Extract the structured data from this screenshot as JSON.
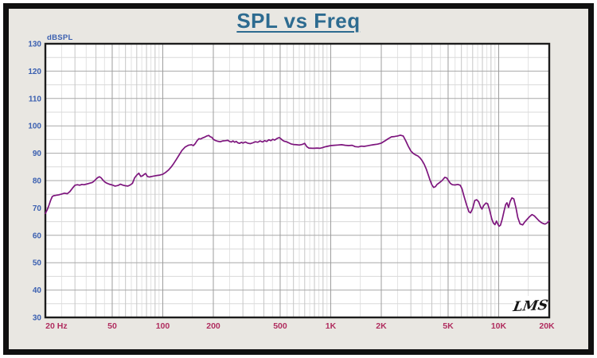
{
  "frame": {
    "outer_border_color": "#101010",
    "background": "#e9e7e2"
  },
  "chart_data": {
    "type": "line",
    "title": "SPL vs Freq",
    "title_color": "#2d6b90",
    "xlabel": "",
    "ylabel": "dBSPL",
    "watermark": "LMS",
    "x_axis": {
      "scale": "log",
      "min": 20,
      "max": 20000,
      "unit": "Hz",
      "unit_pos_hz": 25.2,
      "label_color": "#b02d5f",
      "ticks": [
        {
          "f": 20,
          "label": "20"
        },
        {
          "f": 50,
          "label": "50"
        },
        {
          "f": 100,
          "label": "100"
        },
        {
          "f": 200,
          "label": "200"
        },
        {
          "f": 500,
          "label": "500"
        },
        {
          "f": 1000,
          "label": "1K"
        },
        {
          "f": 2000,
          "label": "2K"
        },
        {
          "f": 5000,
          "label": "5K"
        },
        {
          "f": 10000,
          "label": "10K"
        },
        {
          "f": 20000,
          "label": "20K"
        }
      ]
    },
    "y_axis": {
      "min": 30,
      "max": 130,
      "major_step": 10,
      "minor_step": 5,
      "label_color": "#3a5fb0",
      "tick_labels": [
        "130",
        "120",
        "110",
        "100",
        "90",
        "80",
        "70",
        "60",
        "50",
        "40",
        "30"
      ]
    },
    "grid": {
      "plot_background": "#ffffff",
      "border_color": "#1c1c1c",
      "half_step_color": "#e2e2e2",
      "integer_step_color": "#c6c6c6",
      "labeled_step_color": "#9c9c9c",
      "y_minor_color": "#dadada",
      "y_major_color": "#a9a9a9"
    },
    "series": [
      {
        "name": "SPL",
        "color": "#7d157d",
        "points": [
          [
            20,
            68.0
          ],
          [
            20.5,
            69.3
          ],
          [
            21,
            71.0
          ],
          [
            21.5,
            72.8
          ],
          [
            22,
            74.2
          ],
          [
            22.5,
            74.5
          ],
          [
            23,
            74.6
          ],
          [
            24,
            74.8
          ],
          [
            25,
            75.1
          ],
          [
            26,
            75.4
          ],
          [
            27,
            75.2
          ],
          [
            28,
            76.0
          ],
          [
            29,
            77.2
          ],
          [
            30,
            78.3
          ],
          [
            31,
            78.5
          ],
          [
            32,
            78.3
          ],
          [
            33,
            78.6
          ],
          [
            34,
            78.5
          ],
          [
            35,
            78.7
          ],
          [
            36,
            78.9
          ],
          [
            37,
            79.1
          ],
          [
            38,
            79.3
          ],
          [
            39,
            79.8
          ],
          [
            40,
            80.5
          ],
          [
            41,
            81.1
          ],
          [
            42,
            81.4
          ],
          [
            43,
            81.0
          ],
          [
            44,
            80.2
          ],
          [
            45,
            79.6
          ],
          [
            46,
            79.2
          ],
          [
            48,
            78.7
          ],
          [
            50,
            78.4
          ],
          [
            52,
            78.0
          ],
          [
            54,
            78.2
          ],
          [
            56,
            78.7
          ],
          [
            58,
            78.3
          ],
          [
            60,
            78.1
          ],
          [
            62,
            78.0
          ],
          [
            64,
            78.4
          ],
          [
            66,
            79.0
          ],
          [
            67,
            80.0
          ],
          [
            68,
            81.0
          ],
          [
            70,
            82.0
          ],
          [
            72,
            82.7
          ],
          [
            74,
            81.5
          ],
          [
            76,
            81.8
          ],
          [
            78,
            82.4
          ],
          [
            79,
            82.6
          ],
          [
            81,
            81.5
          ],
          [
            83,
            81.3
          ],
          [
            86,
            81.5
          ],
          [
            89,
            81.7
          ],
          [
            93,
            81.9
          ],
          [
            96,
            82.0
          ],
          [
            100,
            82.3
          ],
          [
            104,
            83.0
          ],
          [
            108,
            83.8
          ],
          [
            112,
            84.9
          ],
          [
            116,
            86.2
          ],
          [
            120,
            87.6
          ],
          [
            125,
            89.3
          ],
          [
            130,
            91.0
          ],
          [
            136,
            92.3
          ],
          [
            142,
            92.9
          ],
          [
            148,
            93.1
          ],
          [
            152,
            92.8
          ],
          [
            156,
            93.5
          ],
          [
            160,
            94.6
          ],
          [
            164,
            95.3
          ],
          [
            168,
            95.2
          ],
          [
            173,
            95.6
          ],
          [
            178,
            95.9
          ],
          [
            183,
            96.3
          ],
          [
            188,
            96.5
          ],
          [
            192,
            96.0
          ],
          [
            196,
            95.8
          ],
          [
            200,
            95.1
          ],
          [
            205,
            94.7
          ],
          [
            212,
            94.4
          ],
          [
            220,
            94.2
          ],
          [
            228,
            94.5
          ],
          [
            236,
            94.6
          ],
          [
            244,
            94.7
          ],
          [
            250,
            94.3
          ],
          [
            256,
            94.1
          ],
          [
            262,
            94.5
          ],
          [
            268,
            94.0
          ],
          [
            274,
            94.3
          ],
          [
            280,
            93.8
          ],
          [
            287,
            93.6
          ],
          [
            294,
            94.0
          ],
          [
            300,
            93.7
          ],
          [
            310,
            94.1
          ],
          [
            320,
            93.7
          ],
          [
            332,
            93.5
          ],
          [
            344,
            93.8
          ],
          [
            356,
            94.2
          ],
          [
            368,
            94.0
          ],
          [
            380,
            94.5
          ],
          [
            392,
            94.1
          ],
          [
            404,
            94.6
          ],
          [
            416,
            94.3
          ],
          [
            428,
            94.9
          ],
          [
            440,
            94.6
          ],
          [
            452,
            95.1
          ],
          [
            464,
            94.8
          ],
          [
            476,
            95.3
          ],
          [
            488,
            95.6
          ],
          [
            495,
            95.7
          ],
          [
            505,
            95.3
          ],
          [
            515,
            94.8
          ],
          [
            528,
            94.4
          ],
          [
            545,
            94.2
          ],
          [
            562,
            93.8
          ],
          [
            580,
            93.4
          ],
          [
            600,
            93.2
          ],
          [
            625,
            93.1
          ],
          [
            650,
            93.0
          ],
          [
            675,
            93.2
          ],
          [
            700,
            93.6
          ],
          [
            720,
            92.4
          ],
          [
            740,
            91.9
          ],
          [
            775,
            91.8
          ],
          [
            800,
            91.8
          ],
          [
            830,
            91.9
          ],
          [
            860,
            91.8
          ],
          [
            890,
            92.0
          ],
          [
            920,
            92.3
          ],
          [
            950,
            92.5
          ],
          [
            1000,
            92.8
          ],
          [
            1050,
            92.9
          ],
          [
            1100,
            93.0
          ],
          [
            1160,
            93.1
          ],
          [
            1220,
            92.9
          ],
          [
            1280,
            92.8
          ],
          [
            1340,
            92.9
          ],
          [
            1400,
            92.4
          ],
          [
            1460,
            92.3
          ],
          [
            1520,
            92.6
          ],
          [
            1580,
            92.5
          ],
          [
            1650,
            92.7
          ],
          [
            1720,
            92.9
          ],
          [
            1800,
            93.1
          ],
          [
            1900,
            93.3
          ],
          [
            2000,
            93.7
          ],
          [
            2100,
            94.5
          ],
          [
            2200,
            95.3
          ],
          [
            2300,
            96.0
          ],
          [
            2400,
            96.1
          ],
          [
            2500,
            96.3
          ],
          [
            2600,
            96.6
          ],
          [
            2700,
            96.3
          ],
          [
            2800,
            94.5
          ],
          [
            2900,
            92.5
          ],
          [
            3000,
            90.8
          ],
          [
            3100,
            89.9
          ],
          [
            3200,
            89.4
          ],
          [
            3300,
            89.0
          ],
          [
            3400,
            88.3
          ],
          [
            3500,
            87.3
          ],
          [
            3600,
            86.0
          ],
          [
            3700,
            84.3
          ],
          [
            3800,
            82.3
          ],
          [
            3900,
            80.2
          ],
          [
            4000,
            78.5
          ],
          [
            4100,
            77.5
          ],
          [
            4200,
            77.8
          ],
          [
            4300,
            78.6
          ],
          [
            4450,
            79.3
          ],
          [
            4600,
            80.0
          ],
          [
            4780,
            81.2
          ],
          [
            4900,
            81.0
          ],
          [
            5000,
            80.2
          ],
          [
            5150,
            79.0
          ],
          [
            5300,
            78.5
          ],
          [
            5500,
            78.4
          ],
          [
            5700,
            78.6
          ],
          [
            5900,
            78.3
          ],
          [
            6050,
            77.0
          ],
          [
            6200,
            74.5
          ],
          [
            6450,
            71.0
          ],
          [
            6650,
            68.6
          ],
          [
            6800,
            68.2
          ],
          [
            7000,
            69.8
          ],
          [
            7200,
            72.7
          ],
          [
            7400,
            73.0
          ],
          [
            7600,
            72.3
          ],
          [
            7800,
            70.4
          ],
          [
            7950,
            69.6
          ],
          [
            8150,
            70.9
          ],
          [
            8400,
            71.8
          ],
          [
            8600,
            71.5
          ],
          [
            8800,
            69.5
          ],
          [
            9100,
            66.0
          ],
          [
            9300,
            64.5
          ],
          [
            9500,
            63.9
          ],
          [
            9700,
            65.2
          ],
          [
            9850,
            64.3
          ],
          [
            10050,
            63.3
          ],
          [
            10250,
            63.7
          ],
          [
            10500,
            66.0
          ],
          [
            10800,
            69.2
          ],
          [
            11000,
            71.2
          ],
          [
            11200,
            71.9
          ],
          [
            11450,
            70.2
          ],
          [
            11700,
            72.4
          ],
          [
            12000,
            73.7
          ],
          [
            12300,
            73.3
          ],
          [
            12700,
            69.8
          ],
          [
            13000,
            66.5
          ],
          [
            13400,
            64.2
          ],
          [
            13900,
            63.8
          ],
          [
            14300,
            64.9
          ],
          [
            14800,
            65.9
          ],
          [
            15300,
            66.9
          ],
          [
            15800,
            67.6
          ],
          [
            16300,
            67.1
          ],
          [
            16900,
            66.1
          ],
          [
            17400,
            65.3
          ],
          [
            17900,
            64.7
          ],
          [
            18400,
            64.3
          ],
          [
            18900,
            64.1
          ],
          [
            19400,
            64.5
          ],
          [
            20000,
            65.3
          ]
        ]
      }
    ]
  }
}
